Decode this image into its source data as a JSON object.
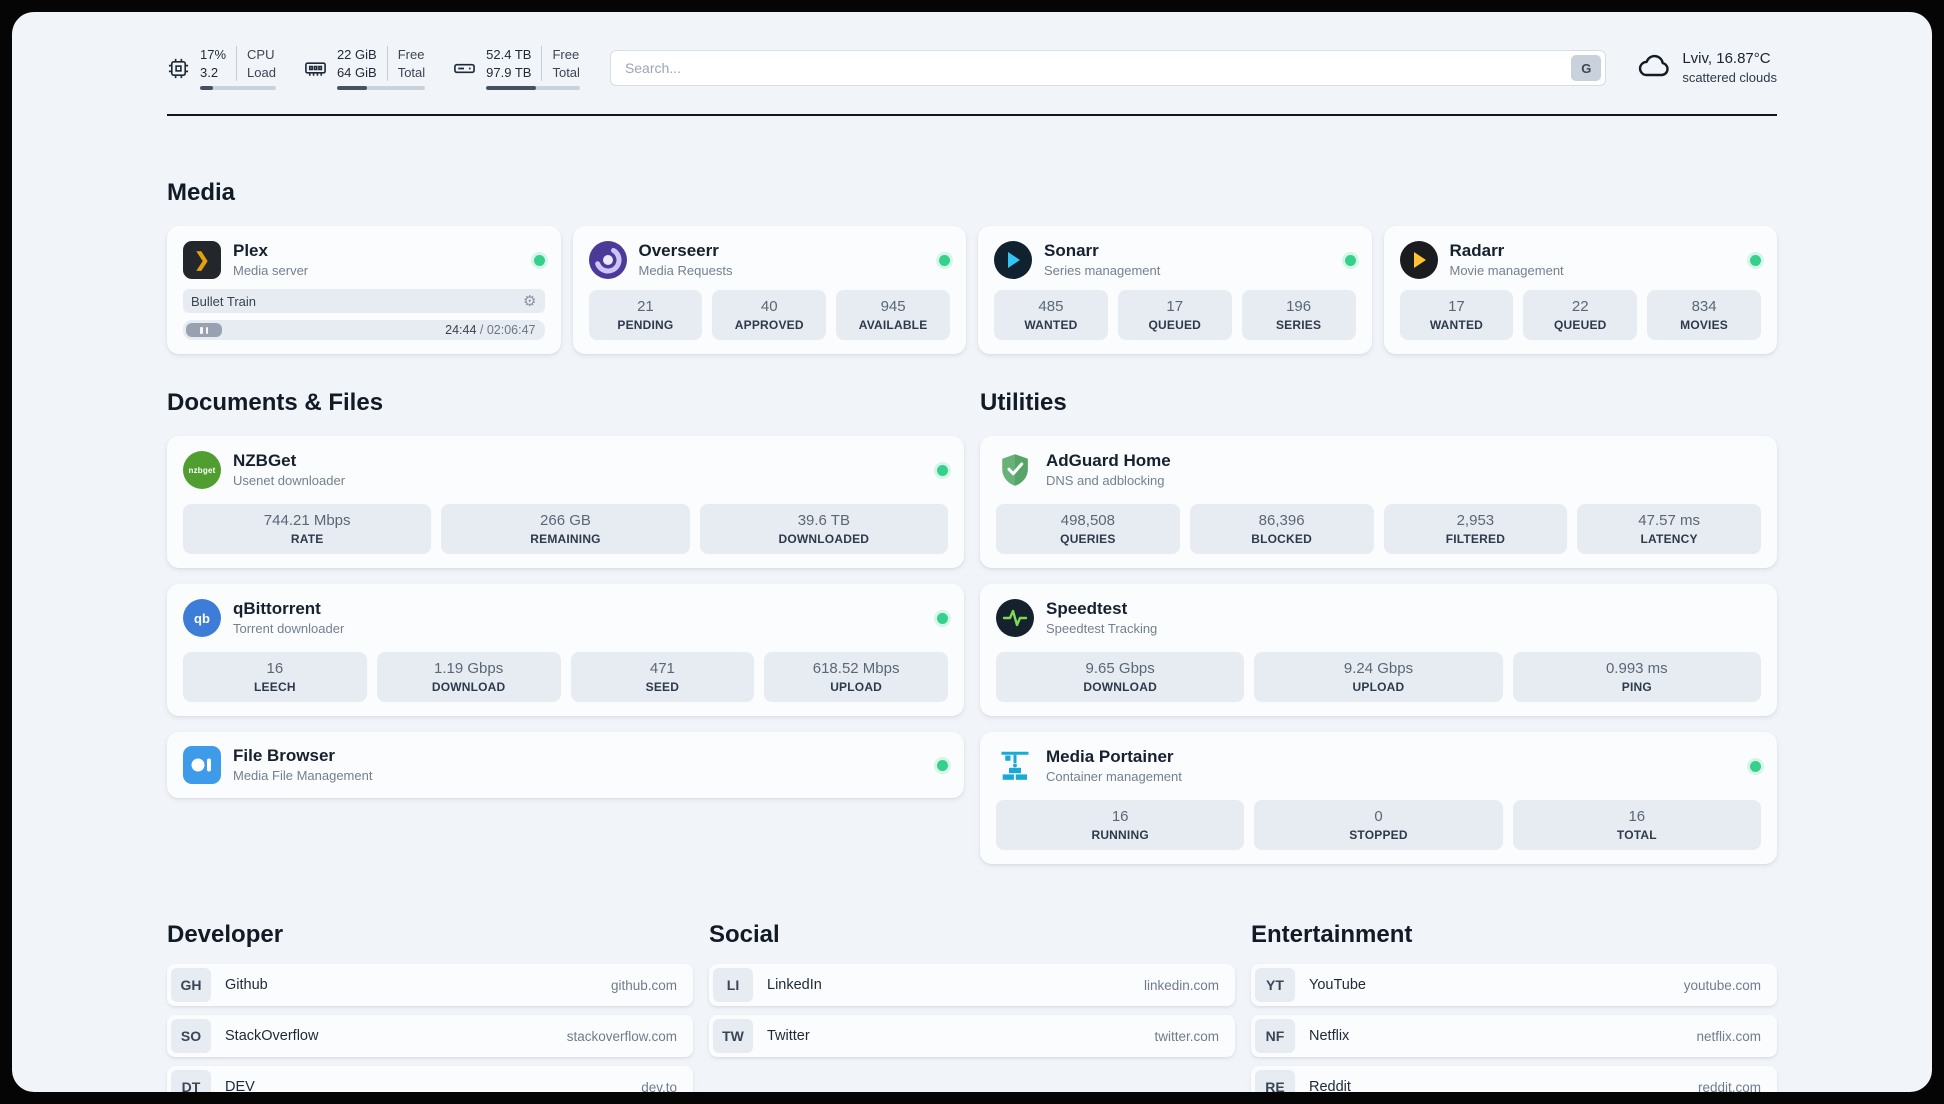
{
  "header": {
    "cpu": {
      "value_top": "17%",
      "value_bottom": "3.2",
      "label_top": "CPU",
      "label_bottom": "Load",
      "progress_pct": 17
    },
    "ram": {
      "value_top": "22 GiB",
      "value_bottom": "64 GiB",
      "label_top": "Free",
      "label_bottom": "Total",
      "progress_pct": 34
    },
    "disk": {
      "value_top": "52.4 TB",
      "value_bottom": "97.9 TB",
      "label_top": "Free",
      "label_bottom": "Total",
      "progress_pct": 53
    },
    "search": {
      "placeholder": "Search...",
      "engine_label": "G"
    },
    "weather": {
      "location": "Lviv, 16.87°C",
      "condition": "scattered clouds"
    }
  },
  "media": {
    "title": "Media",
    "plex": {
      "name": "Plex",
      "desc": "Media server",
      "icon_text": "❯",
      "now_playing": "Bullet Train",
      "time_current": "24:44",
      "time_rest": "/ 02:06:47"
    },
    "overseerr": {
      "name": "Overseerr",
      "desc": "Media Requests",
      "stats": [
        {
          "value": "21",
          "label": "PENDING"
        },
        {
          "value": "40",
          "label": "APPROVED"
        },
        {
          "value": "945",
          "label": "AVAILABLE"
        }
      ]
    },
    "sonarr": {
      "name": "Sonarr",
      "desc": "Series management",
      "stats": [
        {
          "value": "485",
          "label": "WANTED"
        },
        {
          "value": "17",
          "label": "QUEUED"
        },
        {
          "value": "196",
          "label": "SERIES"
        }
      ]
    },
    "radarr": {
      "name": "Radarr",
      "desc": "Movie management",
      "stats": [
        {
          "value": "17",
          "label": "WANTED"
        },
        {
          "value": "22",
          "label": "QUEUED"
        },
        {
          "value": "834",
          "label": "MOVIES"
        }
      ]
    }
  },
  "documents": {
    "title": "Documents & Files",
    "nzbget": {
      "name": "NZBGet",
      "desc": "Usenet downloader",
      "icon_text": "nzbget",
      "stats": [
        {
          "value": "744.21 Mbps",
          "label": "RATE"
        },
        {
          "value": "266 GB",
          "label": "REMAINING"
        },
        {
          "value": "39.6 TB",
          "label": "DOWNLOADED"
        }
      ]
    },
    "qbittorrent": {
      "name": "qBittorrent",
      "desc": "Torrent downloader",
      "icon_text": "qb",
      "stats": [
        {
          "value": "16",
          "label": "LEECH"
        },
        {
          "value": "1.19 Gbps",
          "label": "DOWNLOAD"
        },
        {
          "value": "471",
          "label": "SEED"
        },
        {
          "value": "618.52 Mbps",
          "label": "UPLOAD"
        }
      ]
    },
    "filebrowser": {
      "name": "File Browser",
      "desc": "Media File Management"
    }
  },
  "utilities": {
    "title": "Utilities",
    "adguard": {
      "name": "AdGuard Home",
      "desc": "DNS and adblocking",
      "stats": [
        {
          "value": "498,508",
          "label": "QUERIES"
        },
        {
          "value": "86,396",
          "label": "BLOCKED"
        },
        {
          "value": "2,953",
          "label": "FILTERED"
        },
        {
          "value": "47.57 ms",
          "label": "LATENCY"
        }
      ]
    },
    "speedtest": {
      "name": "Speedtest",
      "desc": "Speedtest Tracking",
      "stats": [
        {
          "value": "9.65 Gbps",
          "label": "DOWNLOAD"
        },
        {
          "value": "9.24 Gbps",
          "label": "UPLOAD"
        },
        {
          "value": "0.993 ms",
          "label": "PING"
        }
      ]
    },
    "portainer": {
      "name": "Media Portainer",
      "desc": "Container management",
      "stats": [
        {
          "value": "16",
          "label": "RUNNING"
        },
        {
          "value": "0",
          "label": "STOPPED"
        },
        {
          "value": "16",
          "label": "TOTAL"
        }
      ]
    }
  },
  "bookmarks": {
    "developer": {
      "title": "Developer",
      "items": [
        {
          "abbr": "GH",
          "name": "Github",
          "url": "github.com"
        },
        {
          "abbr": "SO",
          "name": "StackOverflow",
          "url": "stackoverflow.com"
        },
        {
          "abbr": "DT",
          "name": "DEV",
          "url": "dev.to"
        }
      ]
    },
    "social": {
      "title": "Social",
      "items": [
        {
          "abbr": "LI",
          "name": "LinkedIn",
          "url": "linkedin.com"
        },
        {
          "abbr": "TW",
          "name": "Twitter",
          "url": "twitter.com"
        }
      ]
    },
    "entertainment": {
      "title": "Entertainment",
      "items": [
        {
          "abbr": "YT",
          "name": "YouTube",
          "url": "youtube.com"
        },
        {
          "abbr": "NF",
          "name": "Netflix",
          "url": "netflix.com"
        },
        {
          "abbr": "RE",
          "name": "Reddit",
          "url": "reddit.com"
        }
      ]
    }
  }
}
